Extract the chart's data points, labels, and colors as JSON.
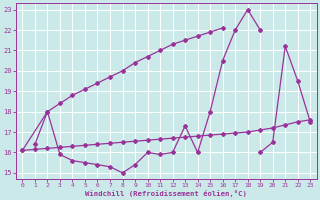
{
  "background_color": "#cce9e9",
  "grid_color": "#b0d8d8",
  "line_color": "#993399",
  "xlabel": "Windchill (Refroidissement éolien,°C)",
  "xlim": [
    -0.5,
    23.5
  ],
  "ylim": [
    14.7,
    23.3
  ],
  "yticks": [
    15,
    16,
    17,
    18,
    19,
    20,
    21,
    22,
    23
  ],
  "xticks": [
    0,
    1,
    2,
    3,
    4,
    5,
    6,
    7,
    8,
    9,
    10,
    11,
    12,
    13,
    14,
    15,
    16,
    17,
    18,
    19,
    20,
    21,
    22,
    23
  ],
  "curve1_x": [
    0,
    2,
    3,
    4,
    5,
    6,
    7,
    8,
    9,
    10,
    11,
    12,
    13,
    14,
    15,
    16
  ],
  "curve1_y": [
    16.1,
    18.0,
    18.4,
    18.8,
    19.1,
    19.4,
    19.7,
    20.0,
    20.4,
    20.7,
    21.0,
    21.3,
    21.5,
    21.7,
    21.9,
    22.1
  ],
  "curve2_x": [
    0,
    1,
    2,
    3,
    4,
    5,
    6,
    7,
    8,
    9,
    10,
    11,
    12,
    13,
    14,
    15,
    16,
    17,
    18,
    19,
    20,
    21,
    22,
    23
  ],
  "curve2_y": [
    16.1,
    16.15,
    16.2,
    16.25,
    16.3,
    16.35,
    16.4,
    16.45,
    16.5,
    16.55,
    16.6,
    16.65,
    16.7,
    16.75,
    16.8,
    16.85,
    16.9,
    16.95,
    17.0,
    17.1,
    17.2,
    17.35,
    17.5,
    17.6
  ],
  "curve3_x": [
    1,
    2,
    3,
    4,
    5,
    6,
    7,
    8,
    9,
    10,
    11,
    12,
    13,
    14,
    15,
    16,
    17,
    18,
    19
  ],
  "curve3_y": [
    16.4,
    18.0,
    15.9,
    15.6,
    15.5,
    15.4,
    15.3,
    15.0,
    15.4,
    16.0,
    15.9,
    16.0,
    17.3,
    16.0,
    18.0,
    20.5,
    22.0,
    23.0,
    22.0
  ],
  "curve4_x": [
    19,
    20,
    21,
    22,
    23
  ],
  "curve4_y": [
    16.0,
    16.5,
    21.2,
    19.5,
    17.5
  ]
}
